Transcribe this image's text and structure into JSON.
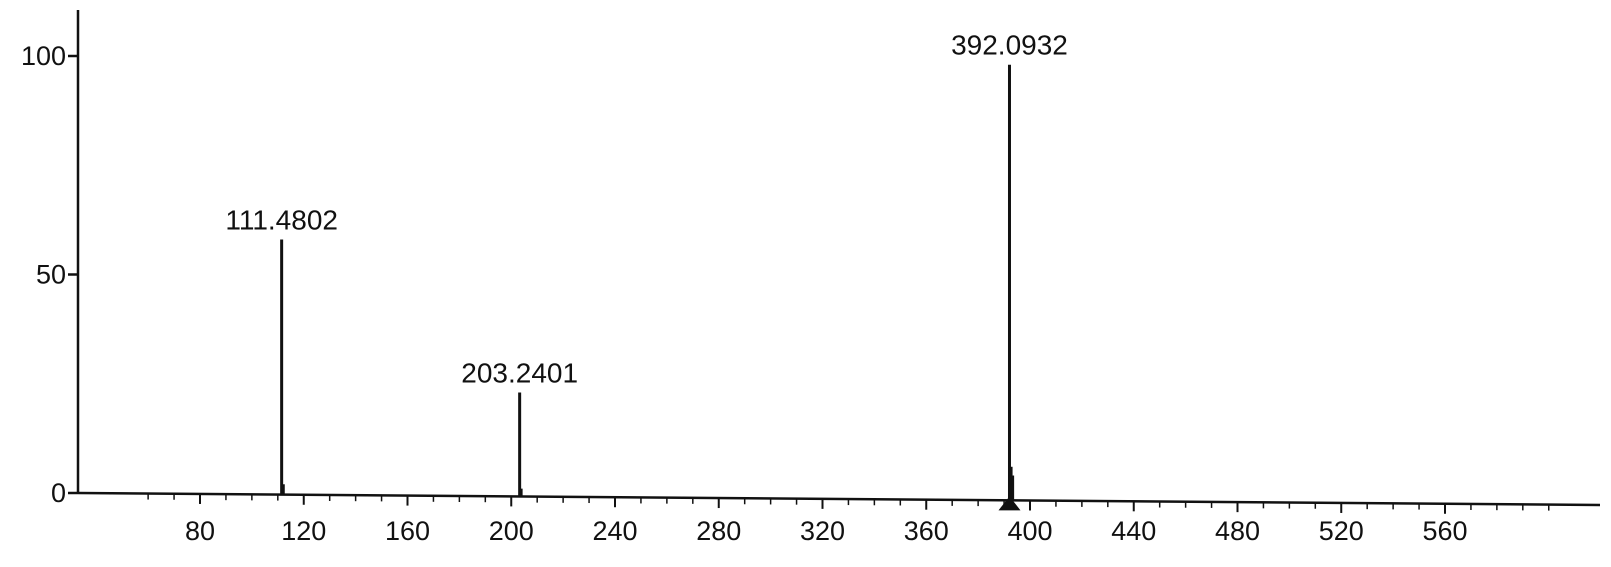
{
  "chart_data": {
    "type": "bar",
    "title": "",
    "xlabel": "",
    "ylabel": "",
    "xlim": [
      45,
      605
    ],
    "ylim": [
      0,
      110
    ],
    "x_ticks": [
      80,
      120,
      160,
      200,
      240,
      280,
      320,
      360,
      400,
      440,
      480,
      520,
      560
    ],
    "y_ticks": [
      0,
      50,
      100
    ],
    "grid": false,
    "legend": "none",
    "peaks": [
      {
        "mz": 111.4802,
        "intensity": 58,
        "label": "111.4802"
      },
      {
        "mz": 203.2401,
        "intensity": 23,
        "label": "203.2401"
      },
      {
        "mz": 392.0932,
        "intensity": 98,
        "label": "392.0932"
      }
    ],
    "minor_peaks": [
      {
        "mz": 112.2,
        "intensity": 2
      },
      {
        "mz": 203.9,
        "intensity": 1
      },
      {
        "mz": 392.8,
        "intensity": 6
      },
      {
        "mz": 393.4,
        "intensity": 4
      }
    ],
    "colors": {
      "line": "#111111",
      "background": "#ffffff"
    }
  }
}
